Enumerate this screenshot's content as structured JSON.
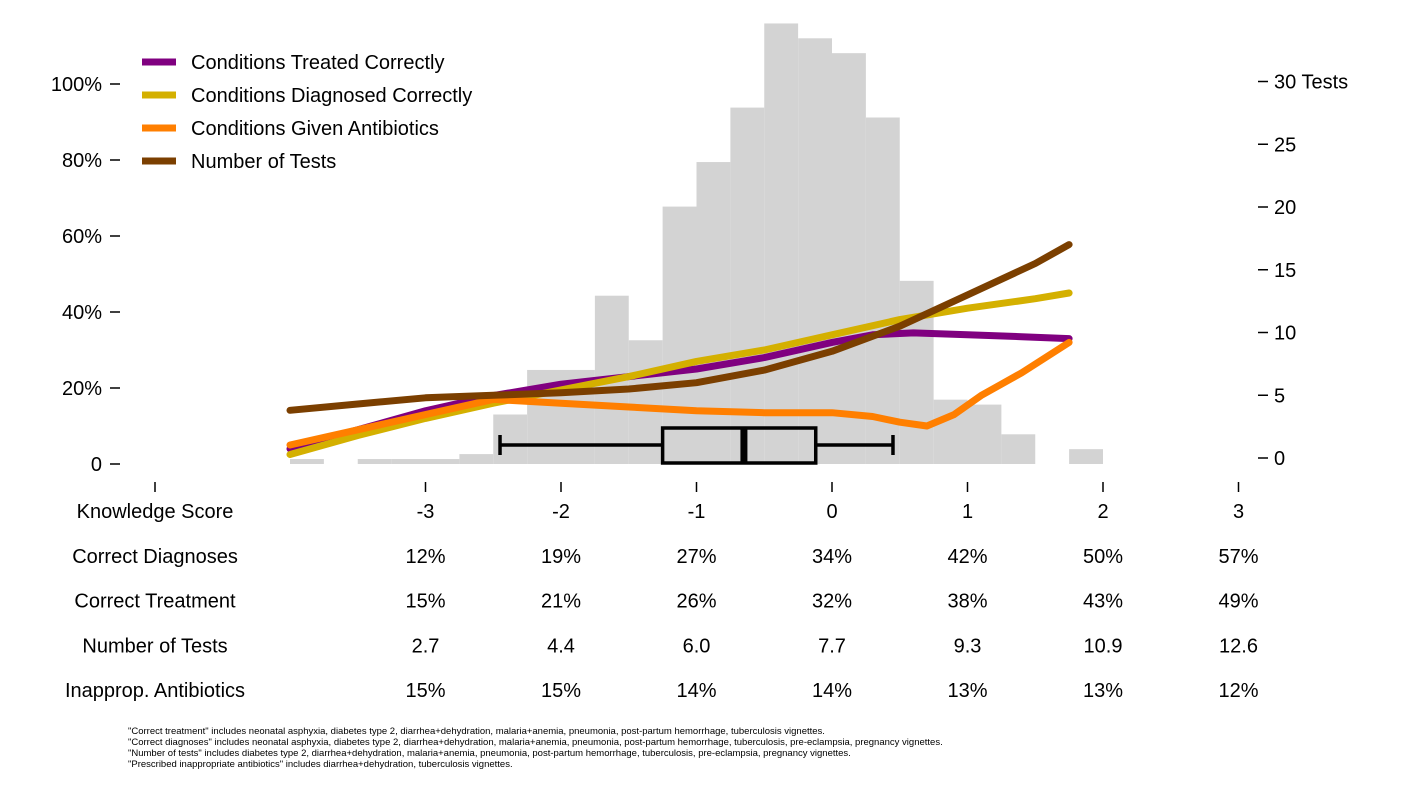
{
  "chart_data": {
    "type": "line",
    "xlabel": "Knowledge Score",
    "left_axis": {
      "ylim": [
        0,
        1.1
      ],
      "ticks": [
        0,
        0.2,
        0.4,
        0.6,
        0.8,
        1.0
      ],
      "tick_labels": [
        "0",
        "20%",
        "40%",
        "60%",
        "80%",
        "100%"
      ]
    },
    "right_axis": {
      "ylim": [
        -0.5,
        33
      ],
      "ticks": [
        0,
        5,
        10,
        15,
        20,
        25,
        30
      ],
      "tick_labels": [
        "0",
        "5",
        "10",
        "15",
        "20",
        "25",
        "30 Tests"
      ]
    },
    "x_ticks": [
      -3,
      -2,
      -1,
      0,
      1,
      2,
      3
    ],
    "x_tick_labels": [
      "-3",
      "-2",
      "-1",
      "0",
      "1",
      "2",
      "3"
    ],
    "xlim": [
      -4.1,
      3.1
    ],
    "legend_position": "top-left",
    "series": [
      {
        "name": "Conditions Treated Correctly",
        "axis": "left",
        "color": "#800080",
        "x": [
          -4,
          -3.5,
          -3,
          -2.5,
          -2,
          -1.5,
          -1,
          -0.5,
          0,
          0.3,
          0.6,
          1.0,
          1.4,
          1.75
        ],
        "y": [
          0.04,
          0.09,
          0.14,
          0.18,
          0.21,
          0.23,
          0.25,
          0.28,
          0.32,
          0.34,
          0.345,
          0.34,
          0.335,
          0.33
        ]
      },
      {
        "name": "Conditions Diagnosed Correctly",
        "axis": "left",
        "color": "#D4B000",
        "x": [
          -4,
          -3.5,
          -3,
          -2.5,
          -2,
          -1.5,
          -1,
          -0.5,
          0,
          0.5,
          1.0,
          1.5,
          1.75
        ],
        "y": [
          0.025,
          0.075,
          0.12,
          0.16,
          0.195,
          0.23,
          0.27,
          0.3,
          0.34,
          0.38,
          0.41,
          0.435,
          0.45
        ]
      },
      {
        "name": "Conditions Given Antibiotics",
        "axis": "left",
        "color": "#FF7F00",
        "x": [
          -4,
          -3.5,
          -3,
          -2.5,
          -2,
          -1.5,
          -1,
          -0.5,
          0,
          0.3,
          0.5,
          0.7,
          0.9,
          1.1,
          1.4,
          1.75
        ],
        "y": [
          0.05,
          0.09,
          0.13,
          0.17,
          0.16,
          0.15,
          0.14,
          0.135,
          0.135,
          0.125,
          0.11,
          0.1,
          0.13,
          0.18,
          0.24,
          0.32
        ]
      },
      {
        "name": "Number of Tests",
        "axis": "right",
        "color": "#7B3F00",
        "x": [
          -4,
          -3.5,
          -3,
          -2.5,
          -2,
          -1.5,
          -1,
          -0.5,
          0,
          0.5,
          1.0,
          1.5,
          1.75
        ],
        "y": [
          3.8,
          4.3,
          4.8,
          5.0,
          5.2,
          5.5,
          6.0,
          7.0,
          8.5,
          10.5,
          13.0,
          15.5,
          17.0
        ]
      }
    ],
    "histogram": {
      "color": "#D3D3D3",
      "bin_width": 0.25,
      "bins": [
        [
          -4.0,
          1
        ],
        [
          -3.75,
          0
        ],
        [
          -3.5,
          1
        ],
        [
          -3.25,
          1
        ],
        [
          -3.0,
          1
        ],
        [
          -2.75,
          2
        ],
        [
          -2.5,
          10
        ],
        [
          -2.25,
          19
        ],
        [
          -2.0,
          19
        ],
        [
          -1.75,
          34
        ],
        [
          -1.5,
          25
        ],
        [
          -1.25,
          52
        ],
        [
          -1.0,
          61
        ],
        [
          -0.75,
          72
        ],
        [
          -0.5,
          89
        ],
        [
          -0.25,
          86
        ],
        [
          0.0,
          83
        ],
        [
          0.25,
          70
        ],
        [
          0.5,
          37
        ],
        [
          0.75,
          13
        ],
        [
          1.0,
          12
        ],
        [
          1.25,
          6
        ],
        [
          1.5,
          0
        ],
        [
          1.75,
          3
        ]
      ]
    },
    "boxplot": {
      "whisker_low": -2.45,
      "q1": -1.25,
      "median": -0.65,
      "q3": -0.12,
      "whisker_high": 0.45
    }
  },
  "table": {
    "rows": [
      {
        "label": "Correct Diagnoses",
        "values": [
          "12%",
          "19%",
          "27%",
          "34%",
          "42%",
          "50%",
          "57%"
        ]
      },
      {
        "label": "Correct Treatment",
        "values": [
          "15%",
          "21%",
          "26%",
          "32%",
          "38%",
          "43%",
          "49%"
        ]
      },
      {
        "label": "Number of Tests",
        "values": [
          "2.7",
          "4.4",
          "6.0",
          "7.7",
          "9.3",
          "10.9",
          "12.6"
        ]
      },
      {
        "label": "Inapprop. Antibiotics",
        "values": [
          "15%",
          "15%",
          "14%",
          "14%",
          "13%",
          "13%",
          "12%"
        ]
      }
    ]
  },
  "notes": [
    "\"Correct treatment\" includes neonatal asphyxia, diabetes type 2, diarrhea+dehydration, malaria+anemia, pneumonia, post-partum hemorrhage, tuberculosis vignettes.",
    "\"Correct diagnoses\" includes neonatal asphyxia, diabetes type 2, diarrhea+dehydration, malaria+anemia, pneumonia, post-partum hemorrhage, tuberculosis, pre-eclampsia, pregnancy vignettes.",
    "\"Number of tests\" includes diabetes type 2, diarrhea+dehydration, malaria+anemia, pneumonia, post-partum hemorrhage, tuberculosis, pre-eclampsia, pregnancy vignettes.",
    "\"Prescribed inappropriate antibiotics\" includes diarrhea+dehydration, tuberculosis vignettes."
  ]
}
